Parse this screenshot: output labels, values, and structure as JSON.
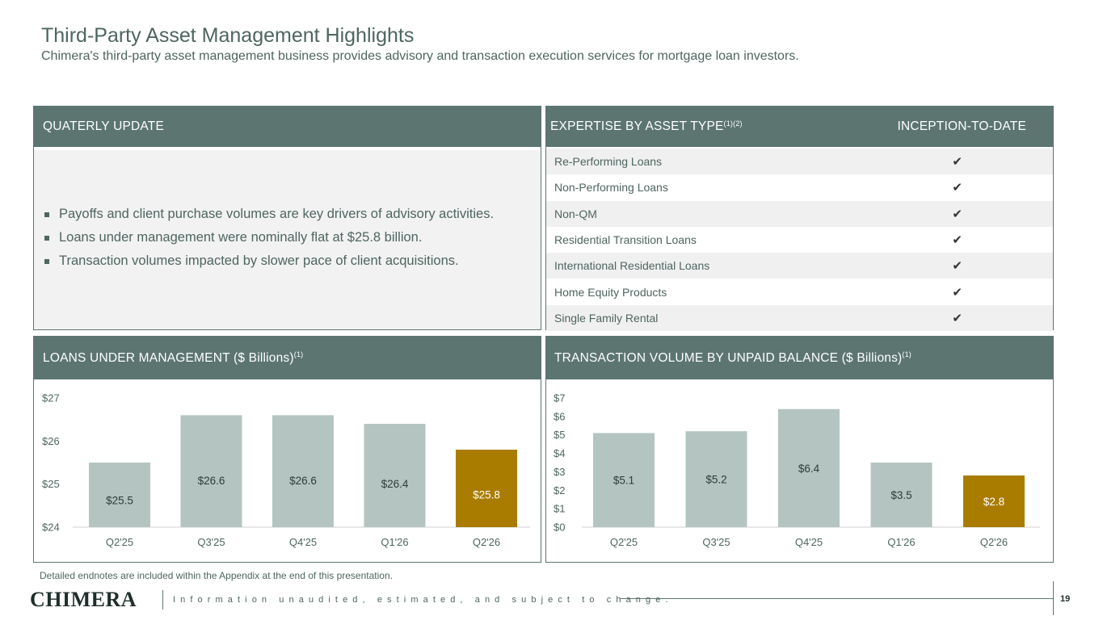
{
  "header": {
    "title": "Third-Party Asset Management Highlights",
    "subtitle": "Chimera's third-party asset management business provides advisory and transaction execution services for mortgage loan investors."
  },
  "quarterly": {
    "heading": "QUATERLY UPDATE",
    "bullets": [
      "Payoffs and client purchase volumes are key drivers of advisory activities.",
      "Loans under management were nominally flat at $25.8 billion.",
      "Transaction volumes impacted by slower pace of client acquisitions."
    ]
  },
  "expertise": {
    "heading": "EXPERTISE BY ASSET TYPE",
    "heading_sup": "(1)(2)",
    "column": "INCEPTION-TO-DATE",
    "check": "✔",
    "rows": [
      "Re-Performing Loans",
      "Non-Performing Loans",
      "Non-QM",
      "Residential Transition Loans",
      "International Residential Loans",
      "Home Equity Products",
      "Single Family Rental"
    ]
  },
  "lum_panel": {
    "heading": "LOANS UNDER MANAGEMENT ($ Billions)",
    "heading_sup": "(1)"
  },
  "tv_panel": {
    "heading": "TRANSACTION VOLUME BY UNPAID BALANCE ($ Billions)",
    "heading_sup": "(1)"
  },
  "chart_data": [
    {
      "type": "bar",
      "title": "LOANS UNDER MANAGEMENT ($ Billions)",
      "categories": [
        "Q2'25",
        "Q3'25",
        "Q4'25",
        "Q1'26",
        "Q2'26"
      ],
      "values": [
        25.5,
        26.6,
        26.6,
        26.4,
        25.8
      ],
      "labels": [
        "$25.5",
        "$26.6",
        "$26.6",
        "$26.4",
        "$25.8"
      ],
      "ylim": [
        24,
        27
      ],
      "yticks": [
        24,
        25,
        26,
        27
      ],
      "ytick_labels": [
        "$24",
        "$25",
        "$26",
        "$27"
      ],
      "grid": false,
      "bar_color": "#b4c4c1",
      "highlight_color": "#a97c00",
      "highlight_index": 4
    },
    {
      "type": "bar",
      "title": "TRANSACTION VOLUME BY UNPAID BALANCE ($ Billions)",
      "categories": [
        "Q2'25",
        "Q3'25",
        "Q4'25",
        "Q1'26",
        "Q2'26"
      ],
      "values": [
        5.1,
        5.2,
        6.4,
        3.5,
        2.8
      ],
      "labels": [
        "$5.1",
        "$5.2",
        "$6.4",
        "$3.5",
        "$2.8"
      ],
      "ylim": [
        0,
        7
      ],
      "yticks": [
        0,
        1,
        2,
        3,
        4,
        5,
        6,
        7
      ],
      "ytick_labels": [
        "$0",
        "$1",
        "$2",
        "$3",
        "$4",
        "$5",
        "$6",
        "$7"
      ],
      "grid": false,
      "bar_color": "#b4c4c1",
      "highlight_color": "#a97c00",
      "highlight_index": 4
    }
  ],
  "footer": {
    "note": "Detailed endnotes are included within the Appendix at the end of this presentation.",
    "logo": "CHIMERA",
    "tagline": "Information unaudited, estimated, and subject to change.",
    "page": "19"
  }
}
